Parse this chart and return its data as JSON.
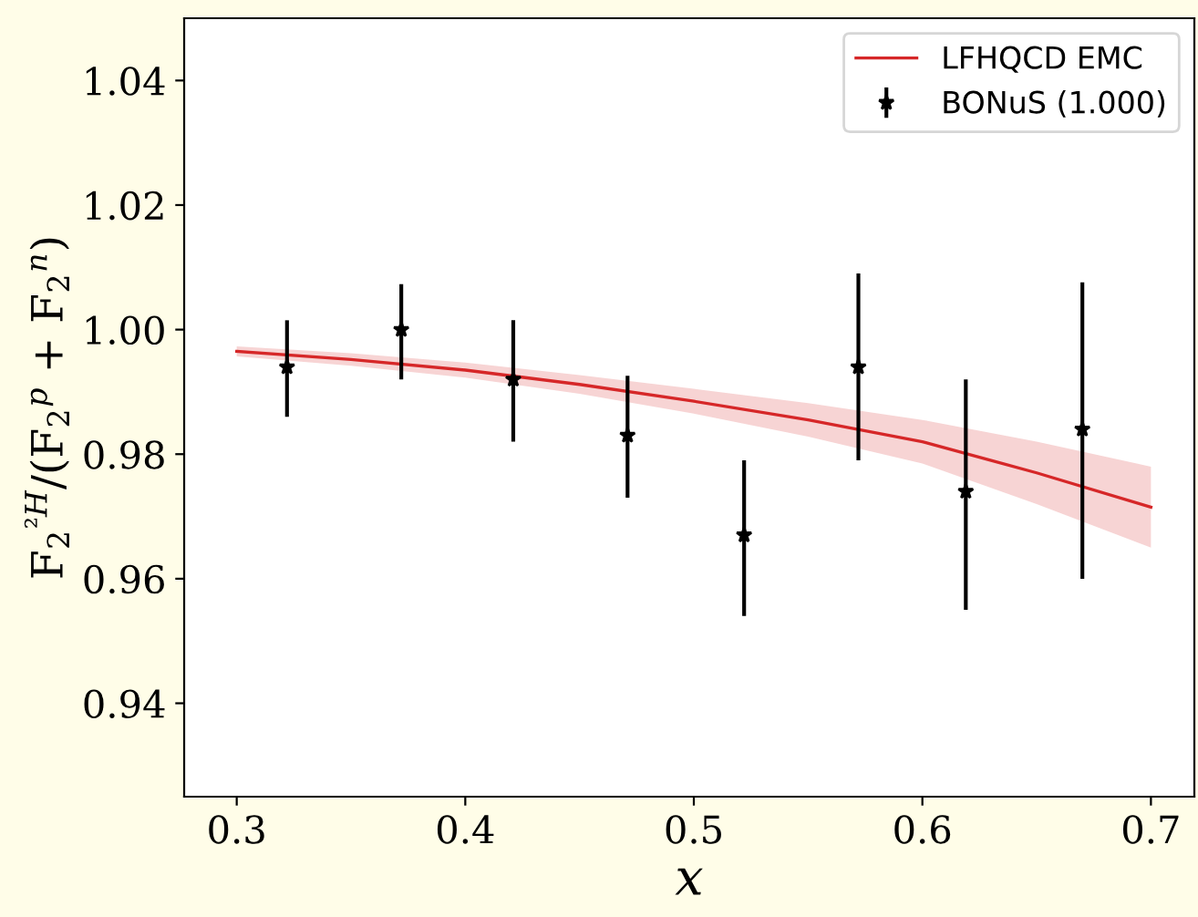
{
  "chart_data": {
    "type": "scatter",
    "xlabel": "x",
    "ylabel": "F$_{2}$$^{²H}$/(F$_{2}$$^{p}$ + F$_{2}$$^{n}$)",
    "xlim": [
      0.277,
      0.719
    ],
    "ylim": [
      0.925,
      1.05
    ],
    "xticks": [
      {
        "value": 0.3,
        "label": "0.3"
      },
      {
        "value": 0.4,
        "label": "0.4"
      },
      {
        "value": 0.5,
        "label": "0.5"
      },
      {
        "value": 0.6,
        "label": "0.6"
      },
      {
        "value": 0.7,
        "label": "0.7"
      }
    ],
    "yticks": [
      {
        "value": 0.94,
        "label": "0.94"
      },
      {
        "value": 0.96,
        "label": "0.96"
      },
      {
        "value": 0.98,
        "label": "0.98"
      },
      {
        "value": 1.0,
        "label": "1.00"
      },
      {
        "value": 1.02,
        "label": "1.02"
      },
      {
        "value": 1.04,
        "label": "1.04"
      }
    ],
    "grid": false,
    "legend": "top right",
    "series": [
      {
        "name": "LFHQCD EMC",
        "type": "line",
        "color": "#d62728",
        "marker": "none",
        "line_style": "solid",
        "x": [
          0.3,
          0.35,
          0.4,
          0.45,
          0.5,
          0.55,
          0.6,
          0.65,
          0.7
        ],
        "values": [
          0.9965,
          0.9952,
          0.9935,
          0.9912,
          0.9885,
          0.9855,
          0.982,
          0.977,
          0.9715
        ],
        "lower": [
          0.9957,
          0.9942,
          0.9923,
          0.9897,
          0.9865,
          0.9828,
          0.9785,
          0.972,
          0.965
        ],
        "upper": [
          0.9973,
          0.9962,
          0.9947,
          0.9927,
          0.9905,
          0.9882,
          0.9855,
          0.982,
          0.978
        ]
      },
      {
        "name": "BONuS (1.000)",
        "color": "#000000",
        "marker": "star",
        "x": [
          0.322,
          0.372,
          0.421,
          0.471,
          0.522,
          0.572,
          0.619,
          0.67
        ],
        "values": [
          0.994,
          1.0,
          0.992,
          0.983,
          0.967,
          0.994,
          0.974,
          0.984
        ],
        "errors": [
          [
            0.986,
            1.0015
          ],
          [
            0.992,
            1.0073
          ],
          [
            0.982,
            1.0015
          ],
          [
            0.973,
            0.9926
          ],
          [
            0.954,
            0.979
          ],
          [
            0.979,
            1.009
          ],
          [
            0.955,
            0.992
          ],
          [
            0.96,
            1.0076
          ]
        ]
      }
    ]
  }
}
